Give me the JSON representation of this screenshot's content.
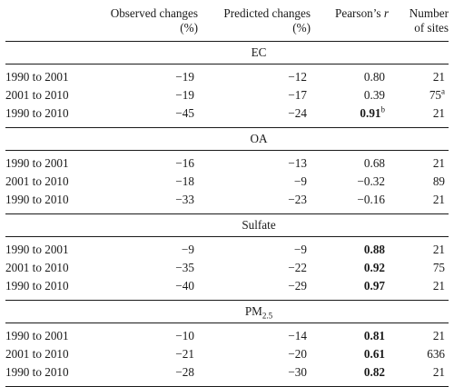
{
  "header": {
    "period": "",
    "observed_line1": "Observed changes",
    "observed_line2": "(%)",
    "predicted_line1": "Predicted changes",
    "predicted_line2": "(%)",
    "pearson_text": "Pearson’s ",
    "pearson_var": "r",
    "sites_line1": "Number",
    "sites_line2": "of sites"
  },
  "groups": [
    {
      "label": "EC",
      "label_sub": "",
      "rows": [
        {
          "period": "1990 to 2001",
          "observed": "−19",
          "predicted": "−12",
          "r": "0.80",
          "r_bold": false,
          "r_sup": "",
          "sites": "21",
          "sites_sup": ""
        },
        {
          "period": "2001 to 2010",
          "observed": "−19",
          "predicted": "−17",
          "r": "0.39",
          "r_bold": false,
          "r_sup": "",
          "sites": "75",
          "sites_sup": "a"
        },
        {
          "period": "1990 to 2010",
          "observed": "−45",
          "predicted": "−24",
          "r": "0.91",
          "r_bold": true,
          "r_sup": "b",
          "sites": "21",
          "sites_sup": ""
        }
      ]
    },
    {
      "label": "OA",
      "label_sub": "",
      "rows": [
        {
          "period": "1990 to 2001",
          "observed": "−16",
          "predicted": "−13",
          "r": "0.68",
          "r_bold": false,
          "r_sup": "",
          "sites": "21",
          "sites_sup": ""
        },
        {
          "period": "2001 to 2010",
          "observed": "−18",
          "predicted": "−9",
          "r": "−0.32",
          "r_bold": false,
          "r_sup": "",
          "sites": "89",
          "sites_sup": ""
        },
        {
          "period": "1990 to 2010",
          "observed": "−33",
          "predicted": "−23",
          "r": "−0.16",
          "r_bold": false,
          "r_sup": "",
          "sites": "21",
          "sites_sup": ""
        }
      ]
    },
    {
      "label": "Sulfate",
      "label_sub": "",
      "rows": [
        {
          "period": "1990 to 2001",
          "observed": "−9",
          "predicted": "−9",
          "r": "0.88",
          "r_bold": true,
          "r_sup": "",
          "sites": "21",
          "sites_sup": ""
        },
        {
          "period": "2001 to 2010",
          "observed": "−35",
          "predicted": "−22",
          "r": "0.92",
          "r_bold": true,
          "r_sup": "",
          "sites": "75",
          "sites_sup": ""
        },
        {
          "period": "1990 to 2010",
          "observed": "−40",
          "predicted": "−29",
          "r": "0.97",
          "r_bold": true,
          "r_sup": "",
          "sites": "21",
          "sites_sup": ""
        }
      ]
    },
    {
      "label": "PM",
      "label_sub": "2.5",
      "rows": [
        {
          "period": "1990 to 2001",
          "observed": "−10",
          "predicted": "−14",
          "r": "0.81",
          "r_bold": true,
          "r_sup": "",
          "sites": "21",
          "sites_sup": ""
        },
        {
          "period": "2001 to 2010",
          "observed": "−21",
          "predicted": "−20",
          "r": "0.61",
          "r_bold": true,
          "r_sup": "",
          "sites": "636",
          "sites_sup": ""
        },
        {
          "period": "1990 to 2010",
          "observed": "−28",
          "predicted": "−30",
          "r": "0.82",
          "r_bold": true,
          "r_sup": "",
          "sites": "21",
          "sites_sup": ""
        }
      ]
    }
  ]
}
